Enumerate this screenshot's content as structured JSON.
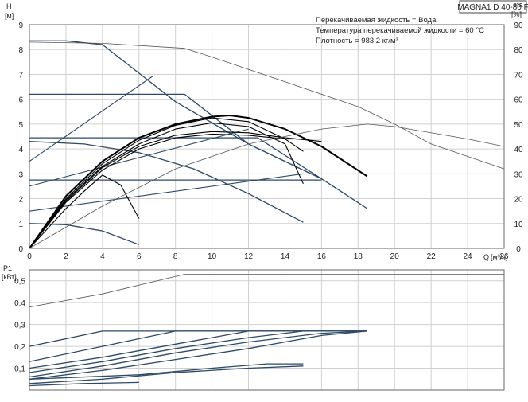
{
  "chart_data": [
    {
      "type": "line",
      "title": "MAGNA1 D 40-80 F",
      "annotations": [
        "Перекачиваемая жидкость = Вода",
        "Температура перекачиваемой жидкости = 60 °C",
        "Плотность = 983.2 кг/м³"
      ],
      "ylabel": "H",
      "yunit": "[м]",
      "y2label": "eta",
      "y2unit": "[%]",
      "xlabel": "Q",
      "xunit": "[м³/ч]",
      "xlim": [
        0,
        26
      ],
      "ylim": [
        0,
        9
      ],
      "y2lim": [
        0,
        90
      ],
      "xticks": [
        0,
        2,
        4,
        6,
        8,
        10,
        12,
        14,
        16,
        18,
        20,
        22,
        24,
        26
      ],
      "yticks": [
        0,
        1,
        2,
        3,
        4,
        5,
        6,
        7,
        8,
        9
      ],
      "y2ticks": [
        0,
        10,
        20,
        30,
        40,
        50,
        60,
        70,
        80,
        90
      ],
      "grid": true,
      "colors": {
        "curve": "#2e4a66",
        "thin": "#555555",
        "duty": "#000000",
        "grid": "#d0d0d0"
      },
      "series": [
        {
          "kind": "pump",
          "points": [
            [
              0,
              8.35
            ],
            [
              2,
              8.35
            ],
            [
              4,
              8.2
            ],
            [
              8,
              5.9
            ],
            [
              12,
              4.2
            ],
            [
              16,
              2.8
            ],
            [
              18.5,
              1.6
            ]
          ]
        },
        {
          "kind": "pump",
          "points": [
            [
              0,
              6.2
            ],
            [
              8.5,
              6.2
            ],
            [
              12,
              4.2
            ],
            [
              16,
              2.8
            ]
          ]
        },
        {
          "kind": "pump",
          "points": [
            [
              0,
              4.45
            ],
            [
              12.5,
              4.45
            ],
            [
              16,
              2.8
            ]
          ]
        },
        {
          "kind": "pump",
          "points": [
            [
              0,
              2.75
            ],
            [
              15.7,
              2.75
            ],
            [
              16,
              2.75
            ]
          ]
        },
        {
          "kind": "pump",
          "points": [
            [
              0,
              4.3
            ],
            [
              3,
              4.2
            ],
            [
              6,
              3.85
            ],
            [
              9,
              3.2
            ],
            [
              12,
              2.2
            ],
            [
              15,
              1.05
            ]
          ]
        },
        {
          "kind": "pump",
          "points": [
            [
              0,
              1.0
            ],
            [
              2,
              0.95
            ],
            [
              4,
              0.7
            ],
            [
              6,
              0.15
            ]
          ]
        },
        {
          "kind": "system",
          "points": [
            [
              0,
              3.5
            ],
            [
              6.8,
              6.95
            ]
          ]
        },
        {
          "kind": "system",
          "points": [
            [
              0,
              2.5
            ],
            [
              12,
              4.8
            ]
          ]
        },
        {
          "kind": "system",
          "points": [
            [
              0,
              1.5
            ],
            [
              15,
              3.0
            ]
          ]
        },
        {
          "kind": "duty",
          "points": [
            [
              0,
              0
            ],
            [
              2,
              2.1
            ],
            [
              4,
              3.5
            ],
            [
              6,
              4.45
            ],
            [
              8,
              5.0
            ],
            [
              10,
              5.3
            ],
            [
              11,
              5.35
            ],
            [
              12,
              5.25
            ],
            [
              14,
              4.8
            ],
            [
              16,
              4.1
            ],
            [
              18.5,
              2.9
            ]
          ]
        },
        {
          "kind": "duty",
          "points": [
            [
              0,
              0
            ],
            [
              2,
              2.0
            ],
            [
              4,
              3.4
            ],
            [
              6,
              4.35
            ],
            [
              8,
              4.95
            ],
            [
              10,
              5.25
            ],
            [
              12,
              5.1
            ],
            [
              14,
              4.4
            ],
            [
              15,
              3.9
            ]
          ]
        },
        {
          "kind": "duty",
          "points": [
            [
              0,
              0
            ],
            [
              2,
              1.95
            ],
            [
              4,
              3.3
            ],
            [
              6,
              4.2
            ],
            [
              8,
              4.8
            ],
            [
              10,
              5.05
            ],
            [
              12,
              4.9
            ],
            [
              14,
              4.2
            ],
            [
              15,
              2.6
            ]
          ]
        },
        {
          "kind": "duty",
          "points": [
            [
              0,
              0
            ],
            [
              2,
              1.9
            ],
            [
              4,
              3.25
            ],
            [
              6,
              4.1
            ],
            [
              8,
              4.55
            ],
            [
              10,
              4.7
            ],
            [
              12,
              4.65
            ],
            [
              14,
              4.45
            ],
            [
              16,
              4.3
            ]
          ]
        },
        {
          "kind": "duty",
          "points": [
            [
              0,
              0
            ],
            [
              2,
              1.85
            ],
            [
              4,
              3.15
            ],
            [
              6,
              4.0
            ],
            [
              8,
              4.45
            ],
            [
              10,
              4.6
            ],
            [
              12,
              4.55
            ],
            [
              14,
              4.4
            ],
            [
              16,
              4.4
            ]
          ]
        },
        {
          "kind": "duty",
          "points": [
            [
              0,
              0
            ],
            [
              2,
              1.6
            ],
            [
              3,
              2.3
            ],
            [
              4,
              2.95
            ],
            [
              5,
              2.55
            ],
            [
              6,
              1.2
            ]
          ]
        },
        {
          "kind": "eta",
          "points": [
            [
              0,
              83
            ],
            [
              4,
              82.5
            ],
            [
              8.5,
              80.5
            ],
            [
              10,
              77
            ],
            [
              14,
              67
            ],
            [
              18,
              57
            ],
            [
              20,
              50
            ],
            [
              22,
              42
            ],
            [
              26,
              32
            ]
          ]
        },
        {
          "kind": "eta",
          "points": [
            [
              0,
              0
            ],
            [
              4,
              17
            ],
            [
              8,
              32
            ],
            [
              12,
              42
            ],
            [
              16,
              48
            ],
            [
              18.5,
              50
            ],
            [
              20,
              49
            ],
            [
              24,
              44
            ],
            [
              26,
              41
            ]
          ]
        }
      ]
    },
    {
      "type": "line",
      "ylabel": "P1",
      "yunit": "[кВт]",
      "xlim": [
        0,
        26
      ],
      "ylim": [
        0,
        0.55
      ],
      "yticks": [
        0.1,
        0.2,
        0.3,
        0.4,
        0.5
      ],
      "ytick_labels": [
        "0,1",
        "0,2",
        "0,3",
        "0,4",
        "0,5"
      ],
      "grid": true,
      "series": [
        {
          "kind": "thin",
          "points": [
            [
              0,
              0.38
            ],
            [
              4,
              0.44
            ],
            [
              8.5,
              0.53
            ],
            [
              26,
              0.53
            ]
          ]
        },
        {
          "kind": "pump",
          "points": [
            [
              0,
              0.2
            ],
            [
              4,
              0.27
            ],
            [
              18.5,
              0.27
            ]
          ]
        },
        {
          "kind": "pump",
          "points": [
            [
              0,
              0.13
            ],
            [
              4,
              0.2
            ],
            [
              8,
              0.27
            ],
            [
              18.5,
              0.27
            ]
          ]
        },
        {
          "kind": "pump",
          "points": [
            [
              0,
              0.1
            ],
            [
              4,
              0.15
            ],
            [
              8,
              0.21
            ],
            [
              10,
              0.24
            ],
            [
              12,
              0.27
            ],
            [
              18.5,
              0.27
            ]
          ]
        },
        {
          "kind": "pump",
          "points": [
            [
              0,
              0.08
            ],
            [
              4,
              0.13
            ],
            [
              8,
              0.19
            ],
            [
              12,
              0.24
            ],
            [
              15,
              0.27
            ],
            [
              18.5,
              0.27
            ]
          ]
        },
        {
          "kind": "pump",
          "points": [
            [
              0,
              0.06
            ],
            [
              4,
              0.11
            ],
            [
              8,
              0.17
            ],
            [
              12,
              0.22
            ],
            [
              16,
              0.26
            ],
            [
              18.5,
              0.27
            ]
          ]
        },
        {
          "kind": "pump",
          "points": [
            [
              0,
              0.05
            ],
            [
              4,
              0.09
            ],
            [
              8,
              0.14
            ],
            [
              12,
              0.19
            ],
            [
              16,
              0.25
            ],
            [
              18.5,
              0.27
            ]
          ]
        },
        {
          "kind": "pump",
          "points": [
            [
              0,
              0.03
            ],
            [
              4,
              0.05
            ],
            [
              8,
              0.08
            ],
            [
              12,
              0.1
            ],
            [
              15,
              0.11
            ]
          ]
        },
        {
          "kind": "pump",
          "points": [
            [
              0,
              0.05
            ],
            [
              6,
              0.07
            ],
            [
              10,
              0.1
            ],
            [
              13,
              0.12
            ],
            [
              15,
              0.12
            ]
          ]
        },
        {
          "kind": "pump",
          "points": [
            [
              0,
              0.02
            ],
            [
              3,
              0.03
            ],
            [
              6,
              0.035
            ]
          ]
        }
      ]
    }
  ]
}
